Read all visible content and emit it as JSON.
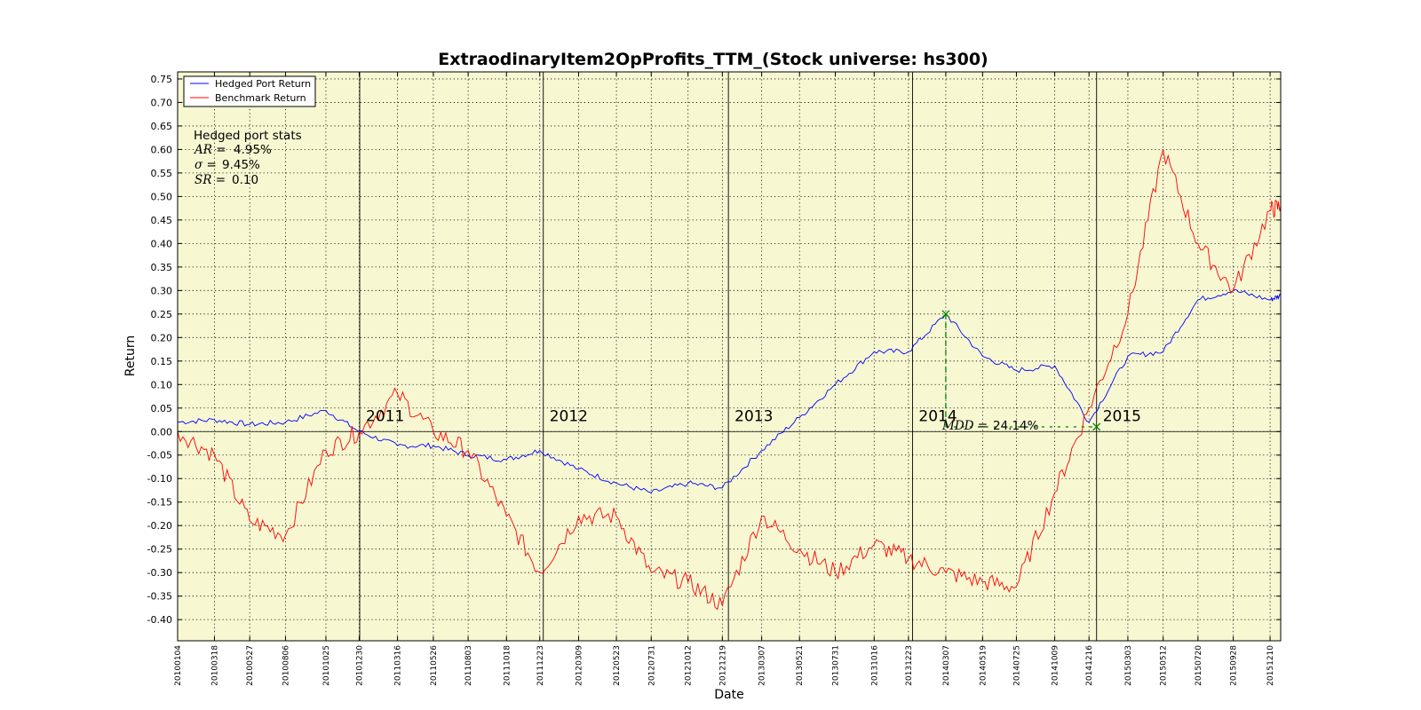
{
  "chart_data": {
    "type": "line",
    "title": "ExtraodinaryItem2OpProfits_TTM_(Stock universe: hs300)",
    "xlabel": "Date",
    "ylabel": "Return",
    "ylim": [
      -0.445,
      0.765
    ],
    "grid": true,
    "background_color": "#f7f7d2",
    "legend_placement": "upper-left",
    "x_ticks": [
      "20100104",
      "20100318",
      "20100527",
      "20100806",
      "20101025",
      "20101230",
      "20110316",
      "20110526",
      "20110803",
      "20111018",
      "20111223",
      "20120309",
      "20120523",
      "20120731",
      "20121012",
      "20121219",
      "20130307",
      "20130521",
      "20130731",
      "20131016",
      "20131223",
      "20140307",
      "20140519",
      "20140725",
      "20141009",
      "20141216",
      "20150303",
      "20150512",
      "20150720",
      "20150928",
      "20151210"
    ],
    "y_ticks": [
      "0.75",
      "0.70",
      "0.65",
      "0.60",
      "0.55",
      "0.50",
      "0.45",
      "0.40",
      "0.35",
      "0.30",
      "0.25",
      "0.20",
      "0.15",
      "0.10",
      "0.05",
      "0.00",
      "-0.05",
      "-0.10",
      "-0.15",
      "-0.20",
      "-0.25",
      "-0.30",
      "-0.35",
      "-0.40"
    ],
    "year_markers": [
      {
        "label": "2011",
        "date": "20101231"
      },
      {
        "label": "2012",
        "date": "20111230"
      },
      {
        "label": "2013",
        "date": "20121231"
      },
      {
        "label": "2014",
        "date": "20131231"
      },
      {
        "label": "2015",
        "date": "20141231"
      }
    ],
    "x": [
      "20100104",
      "20100318",
      "20100527",
      "20100806",
      "20101025",
      "20101230",
      "20110316",
      "20110526",
      "20110803",
      "20111018",
      "20111223",
      "20120309",
      "20120523",
      "20120731",
      "20121012",
      "20121219",
      "20130307",
      "20130521",
      "20130731",
      "20131016",
      "20131223",
      "20140307",
      "20140519",
      "20140725",
      "20141009",
      "20141216",
      "20150303",
      "20150512",
      "20150720",
      "20150928",
      "20151210",
      "20151231"
    ],
    "series": [
      {
        "name": "Hedged Port Return",
        "color": "#0000ff",
        "values": [
          0.02,
          0.025,
          0.015,
          0.02,
          0.045,
          0.0,
          -0.03,
          -0.03,
          -0.05,
          -0.06,
          -0.04,
          -0.08,
          -0.11,
          -0.13,
          -0.11,
          -0.12,
          -0.04,
          0.03,
          0.1,
          0.17,
          0.17,
          0.25,
          0.16,
          0.13,
          0.14,
          0.02,
          0.16,
          0.17,
          0.28,
          0.3,
          0.28,
          0.29
        ]
      },
      {
        "name": "Benchmark Return",
        "color": "#ff0000",
        "values": [
          0.0,
          -0.05,
          -0.19,
          -0.22,
          -0.04,
          0.0,
          0.08,
          0.0,
          -0.04,
          -0.18,
          -0.3,
          -0.18,
          -0.18,
          -0.3,
          -0.32,
          -0.37,
          -0.18,
          -0.25,
          -0.3,
          -0.24,
          -0.27,
          -0.3,
          -0.32,
          -0.33,
          -0.13,
          0.05,
          0.25,
          0.6,
          0.4,
          0.3,
          0.47,
          0.48
        ]
      }
    ],
    "stats": {
      "heading": "Hedged port stats",
      "ar_symbol": "AR =",
      "ar_value": "4.95%",
      "sigma_symbol": "σ =",
      "sigma_value": "9.45%",
      "sr_symbol": "SR =",
      "sr_value": "0.10"
    },
    "mdd": {
      "symbol": "MDD =",
      "value": "24.14%",
      "peak_date": "20140307",
      "peak_value": 0.25,
      "trough_date": "20141231",
      "trough_value": 0.01,
      "color": "#008000"
    }
  }
}
